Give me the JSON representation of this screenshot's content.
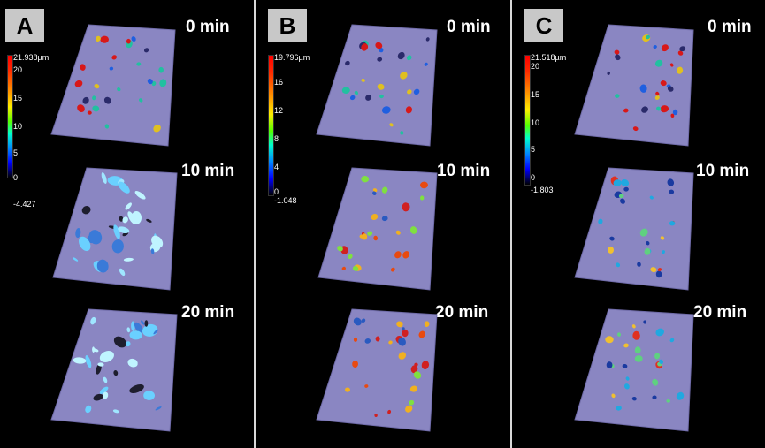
{
  "panels": [
    {
      "letter": "A",
      "scale": {
        "max": "21.938µm",
        "ticks": [
          "20",
          "15",
          "10",
          "5",
          "0"
        ],
        "min": "-4.427"
      },
      "frames": [
        {
          "time": "0 min",
          "particle_style": "small-colored"
        },
        {
          "time": "10 min",
          "particle_style": "crystals-cyan"
        },
        {
          "time": "20 min",
          "particle_style": "crystals-cyan"
        }
      ]
    },
    {
      "letter": "B",
      "scale": {
        "max": "19.796µm",
        "ticks": [
          "16",
          "12",
          "8",
          "4",
          "0"
        ],
        "min": "-1.048"
      },
      "frames": [
        {
          "time": "0 min",
          "particle_style": "small-colored"
        },
        {
          "time": "10 min",
          "particle_style": "round-hot"
        },
        {
          "time": "20 min",
          "particle_style": "round-hot"
        }
      ]
    },
    {
      "letter": "C",
      "scale": {
        "max": "21.518µm",
        "ticks": [
          "20",
          "15",
          "10",
          "5",
          "0"
        ],
        "min": "-1.803"
      },
      "frames": [
        {
          "time": "0 min",
          "particle_style": "small-colored"
        },
        {
          "time": "10 min",
          "particle_style": "small-round"
        },
        {
          "time": "20 min",
          "particle_style": "small-round"
        }
      ]
    }
  ],
  "colors": {
    "background": "#000000",
    "surface": "#8a86c2",
    "surface_edge": "#6f6ba8",
    "divider": "#d8d8d8",
    "label_box": "#c8c8c8"
  }
}
